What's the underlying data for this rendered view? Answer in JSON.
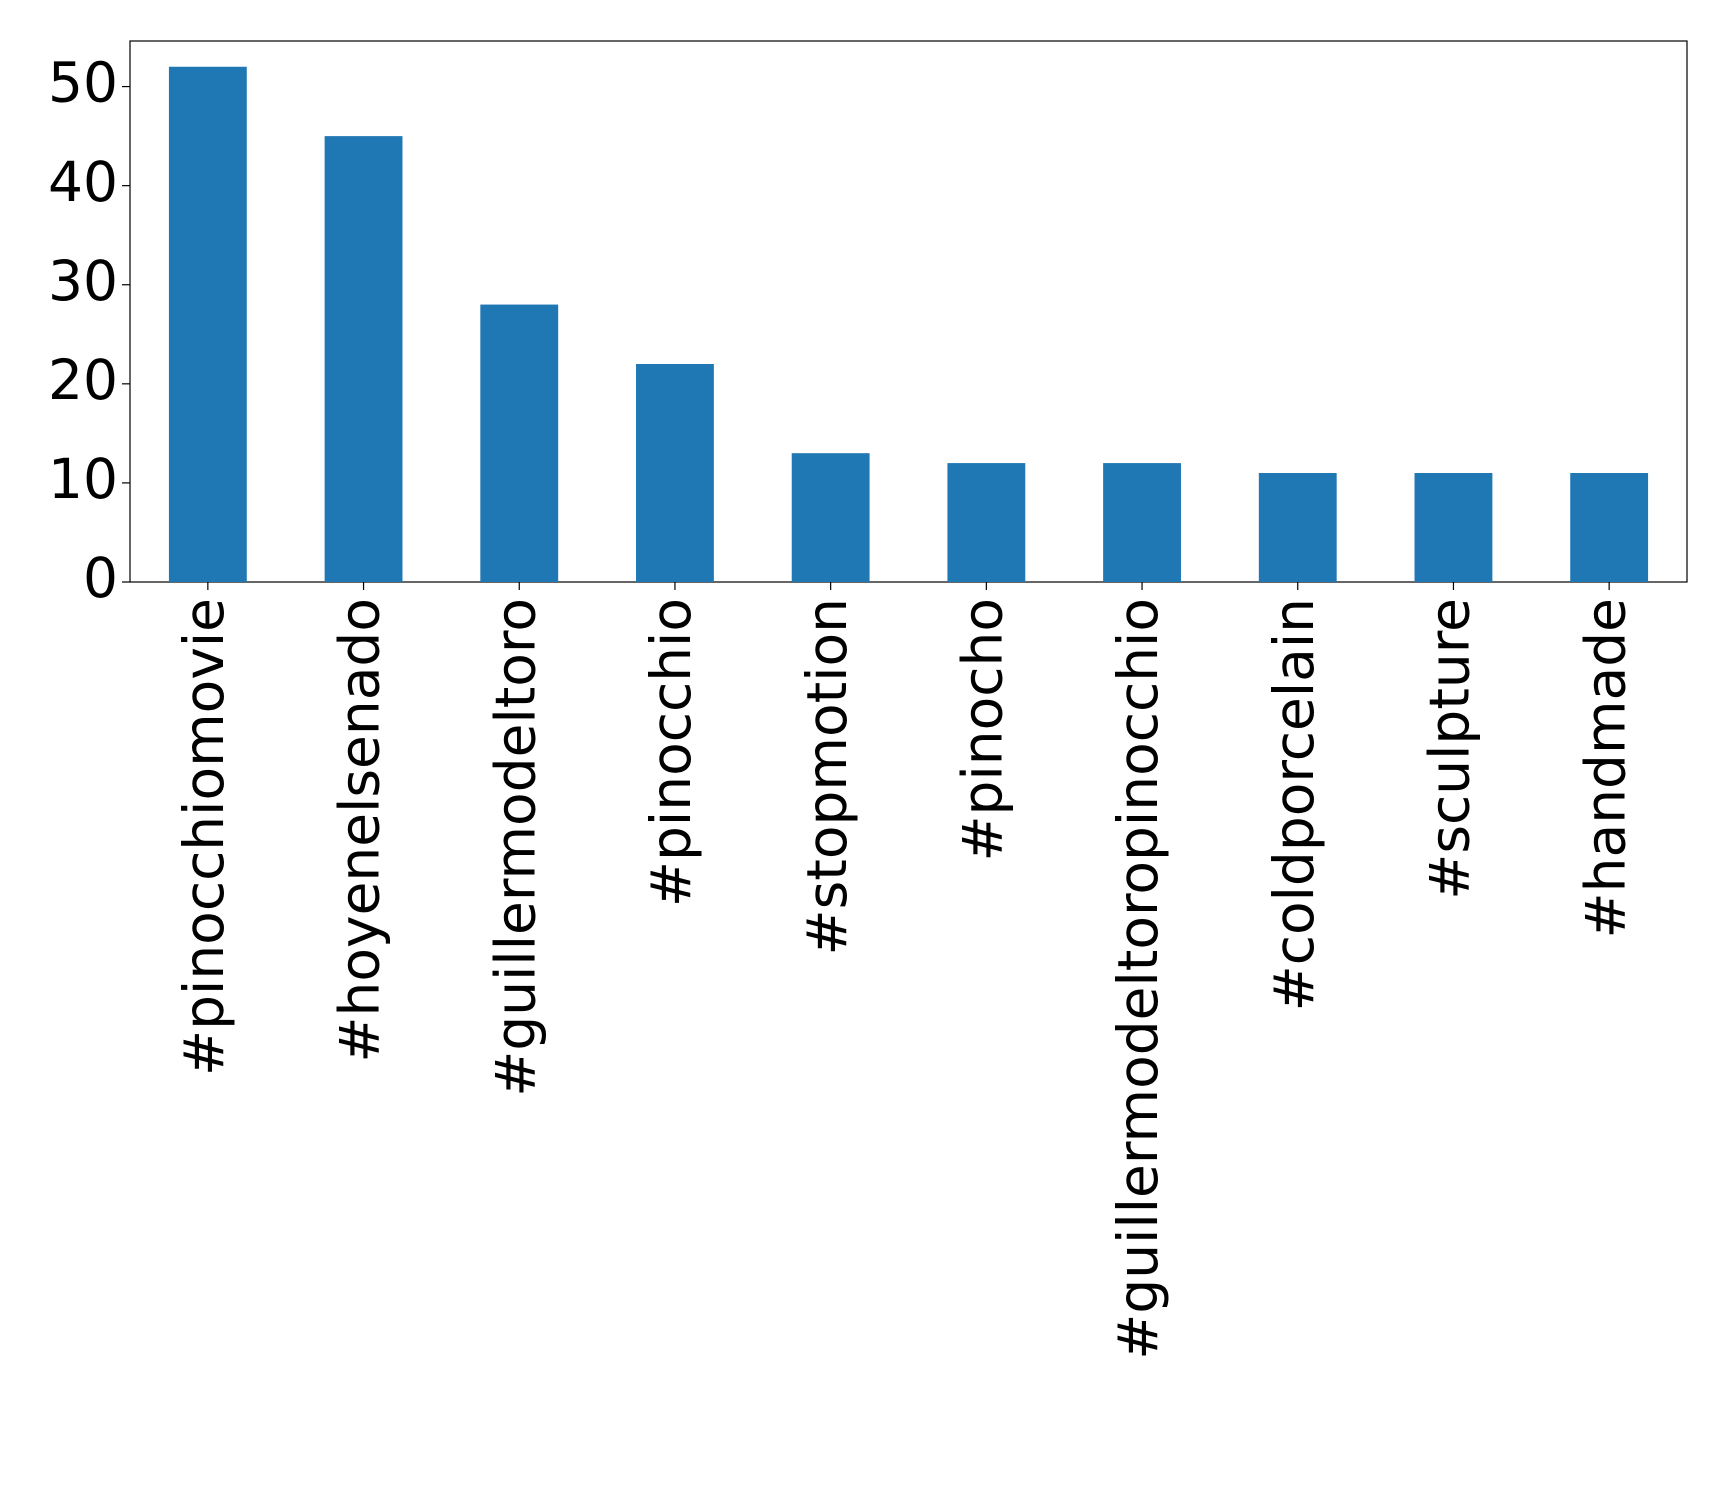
{
  "chart_data": {
    "type": "bar",
    "categories": [
      "#pinocchiomovie",
      "#hoyenelsenado",
      "#guillermodeltoro",
      "#pinocchio",
      "#stopmotion",
      "#pinocho",
      "#guillermodeltoropinocchio",
      "#coldporcelain",
      "#sculpture",
      "#handmade"
    ],
    "values": [
      52,
      45,
      28,
      22,
      13,
      12,
      12,
      11,
      11,
      11
    ],
    "color": "#1f77b4",
    "ylim": [
      0,
      54.6
    ],
    "yticks": [
      0,
      10,
      20,
      30,
      40,
      50
    ],
    "grid": false
  }
}
